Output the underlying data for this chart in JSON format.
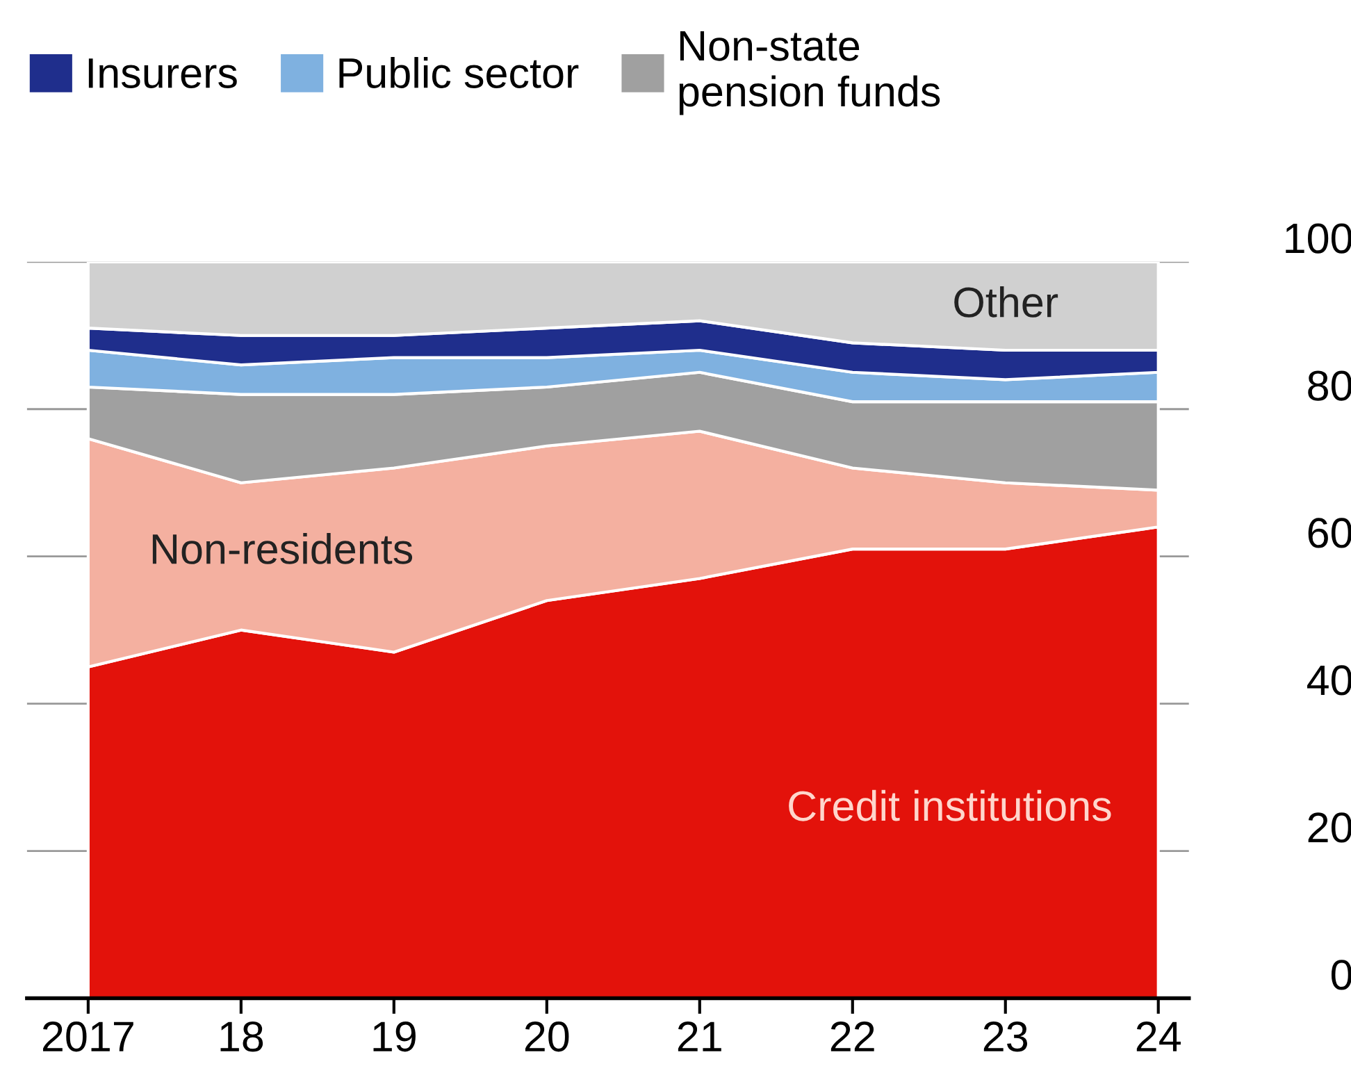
{
  "chart_data": {
    "type": "area",
    "stacked": true,
    "x": [
      2017,
      2018,
      2019,
      2020,
      2021,
      2022,
      2023,
      2024
    ],
    "xlim": [
      2016.6,
      2024.2
    ],
    "xticks": [
      2017,
      {
        "value": 2018,
        "label": "18"
      },
      {
        "value": 2019,
        "label": "19"
      },
      {
        "value": 2020,
        "label": "20"
      },
      {
        "value": 2021,
        "label": "21"
      },
      {
        "value": 2022,
        "label": "22"
      },
      {
        "value": 2023,
        "label": "23"
      },
      {
        "value": 2024,
        "label": "24"
      }
    ],
    "ylim": [
      0,
      100
    ],
    "yticks": [
      0,
      20,
      40,
      60,
      80,
      100
    ],
    "grid": "y",
    "legend": "top left",
    "series": [
      {
        "name": "Credit institutions",
        "color": "#e3120b",
        "values": [
          45,
          50,
          47,
          54,
          57,
          61,
          61,
          64
        ]
      },
      {
        "name": "Non-residents",
        "color": "#f4b0a0",
        "values": [
          31,
          20,
          25,
          21,
          20,
          11,
          9,
          5
        ]
      },
      {
        "name": "Non-state\npension funds",
        "color": "#a0a0a0",
        "values": [
          7,
          12,
          10,
          8,
          8,
          9,
          11,
          12
        ]
      },
      {
        "name": "Public sector",
        "color": "#7fb1e0",
        "values": [
          5,
          4,
          5,
          4,
          3,
          4,
          3,
          4
        ]
      },
      {
        "name": "Insurers",
        "color": "#1f2e8c",
        "values": [
          3,
          4,
          3,
          4,
          4,
          4,
          4,
          3
        ]
      },
      {
        "name": "Other",
        "color": "#d0d0d0",
        "values": [
          9,
          10,
          10,
          9,
          8,
          11,
          12,
          12
        ]
      }
    ]
  }
}
